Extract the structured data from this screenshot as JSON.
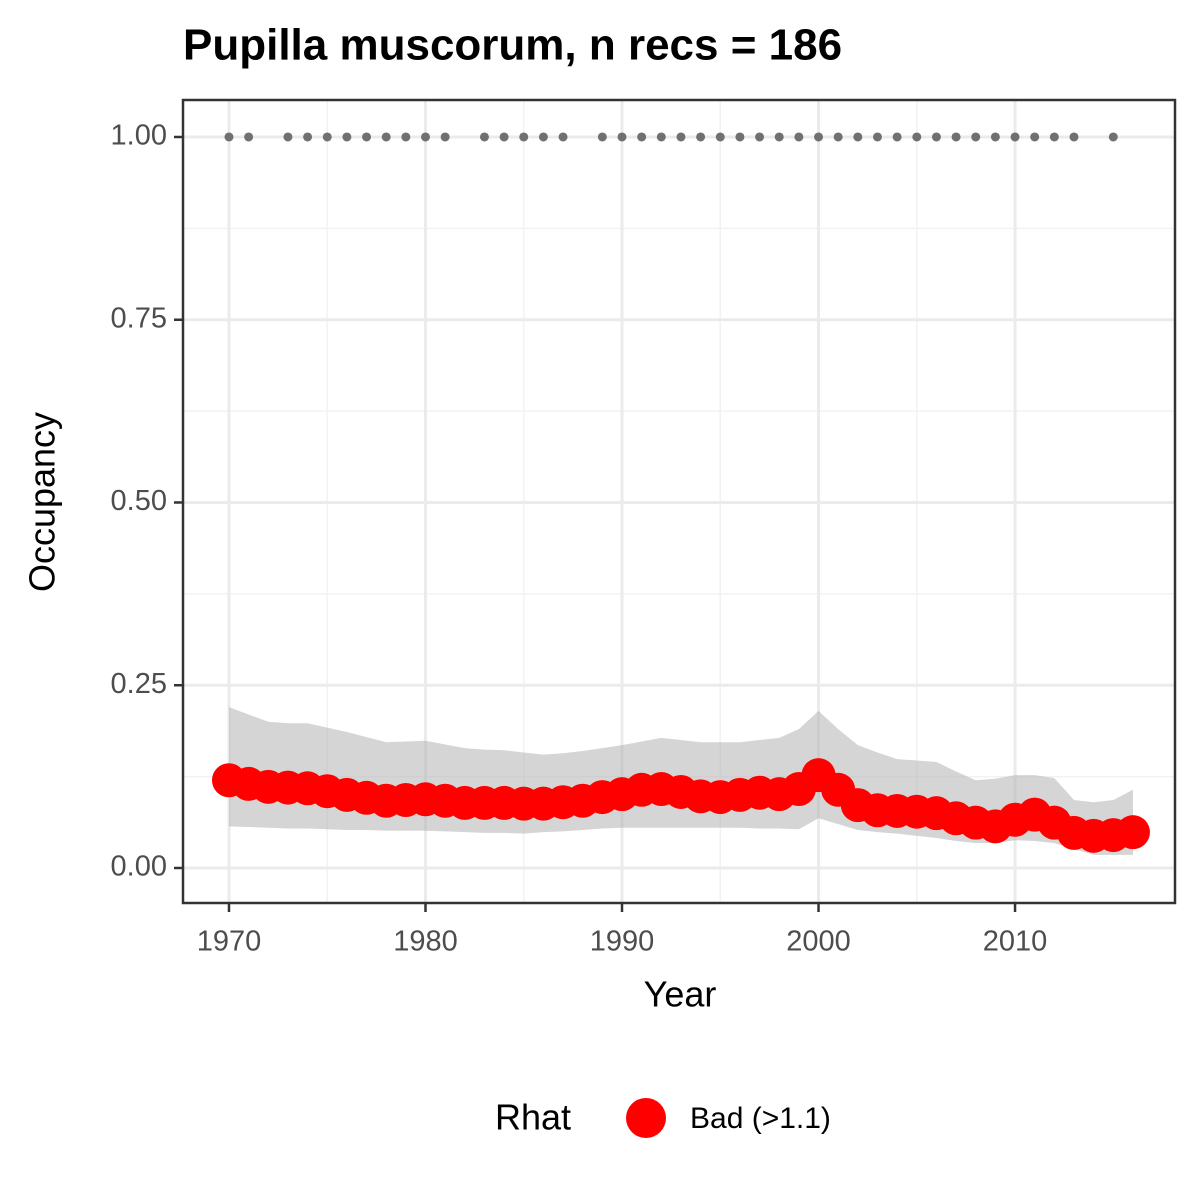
{
  "chart_data": {
    "type": "line",
    "title": "Pupilla muscorum, n recs = 186",
    "x_label": "Year",
    "y_label": "Occupancy",
    "x": [
      1970,
      1971,
      1972,
      1973,
      1974,
      1975,
      1976,
      1977,
      1978,
      1979,
      1980,
      1981,
      1982,
      1983,
      1984,
      1985,
      1986,
      1987,
      1988,
      1989,
      1990,
      1991,
      1992,
      1993,
      1994,
      1995,
      1996,
      1997,
      1998,
      1999,
      2000,
      2001,
      2002,
      2003,
      2004,
      2005,
      2006,
      2007,
      2008,
      2009,
      2010,
      2011,
      2012,
      2013,
      2014,
      2015,
      2016
    ],
    "series": [
      {
        "name": "Bad (>1.1)",
        "color": "#ff0000",
        "values": [
          0.12,
          0.115,
          0.111,
          0.11,
          0.109,
          0.105,
          0.1,
          0.096,
          0.092,
          0.093,
          0.094,
          0.092,
          0.089,
          0.089,
          0.089,
          0.088,
          0.088,
          0.09,
          0.092,
          0.097,
          0.101,
          0.107,
          0.108,
          0.104,
          0.098,
          0.097,
          0.1,
          0.103,
          0.101,
          0.108,
          0.127,
          0.107,
          0.086,
          0.079,
          0.078,
          0.077,
          0.075,
          0.068,
          0.062,
          0.057,
          0.066,
          0.073,
          0.062,
          0.048,
          0.044,
          0.045,
          0.049
        ]
      }
    ],
    "ribbon": {
      "color": "#b3b3b3",
      "upper": [
        0.22,
        0.21,
        0.2,
        0.198,
        0.198,
        0.192,
        0.186,
        0.179,
        0.172,
        0.173,
        0.174,
        0.169,
        0.164,
        0.162,
        0.161,
        0.158,
        0.155,
        0.157,
        0.16,
        0.164,
        0.168,
        0.173,
        0.178,
        0.175,
        0.172,
        0.172,
        0.172,
        0.175,
        0.178,
        0.19,
        0.215,
        0.19,
        0.168,
        0.158,
        0.149,
        0.147,
        0.145,
        0.132,
        0.12,
        0.122,
        0.127,
        0.127,
        0.123,
        0.093,
        0.09,
        0.093,
        0.107
      ],
      "lower": [
        0.057,
        0.056,
        0.055,
        0.054,
        0.054,
        0.053,
        0.052,
        0.052,
        0.051,
        0.051,
        0.051,
        0.05,
        0.049,
        0.048,
        0.048,
        0.047,
        0.049,
        0.05,
        0.052,
        0.054,
        0.055,
        0.055,
        0.055,
        0.055,
        0.055,
        0.055,
        0.055,
        0.054,
        0.054,
        0.053,
        0.068,
        0.06,
        0.052,
        0.049,
        0.047,
        0.044,
        0.041,
        0.037,
        0.034,
        0.034,
        0.038,
        0.037,
        0.034,
        0.026,
        0.018,
        0.018,
        0.018
      ]
    },
    "records": {
      "color": "#707070",
      "x": [
        1970,
        1971,
        1973,
        1974,
        1975,
        1976,
        1977,
        1978,
        1979,
        1980,
        1981,
        1983,
        1984,
        1985,
        1986,
        1987,
        1989,
        1990,
        1991,
        1992,
        1993,
        1994,
        1995,
        1996,
        1997,
        1998,
        1999,
        2000,
        2001,
        2002,
        2003,
        2004,
        2005,
        2006,
        2007,
        2008,
        2009,
        2010,
        2011,
        2012,
        2013,
        2015
      ],
      "values": [
        1,
        1,
        1,
        1,
        1,
        1,
        1,
        1,
        1,
        1,
        1,
        1,
        1,
        1,
        1,
        1,
        1,
        1,
        1,
        1,
        1,
        1,
        1,
        1,
        1,
        1,
        1,
        1,
        1,
        1,
        1,
        1,
        1,
        1,
        1,
        1,
        1,
        1,
        1,
        1,
        1,
        1
      ]
    },
    "legend_title": "Rhat",
    "legend_position": "bottom",
    "xlim": [
      1967.66,
      2018.14
    ],
    "ylim": [
      -0.0479,
      1.0506
    ],
    "xticks": [
      1970,
      1980,
      1990,
      2000,
      2010
    ],
    "yticks": [
      {
        "value": 0,
        "label": "0.00"
      },
      {
        "value": 0.25,
        "label": "0.25"
      },
      {
        "value": 0.5,
        "label": "0.50"
      },
      {
        "value": 0.75,
        "label": "0.75"
      },
      {
        "value": 1,
        "label": "1.00"
      }
    ],
    "grid": true,
    "minor_grid": true
  }
}
